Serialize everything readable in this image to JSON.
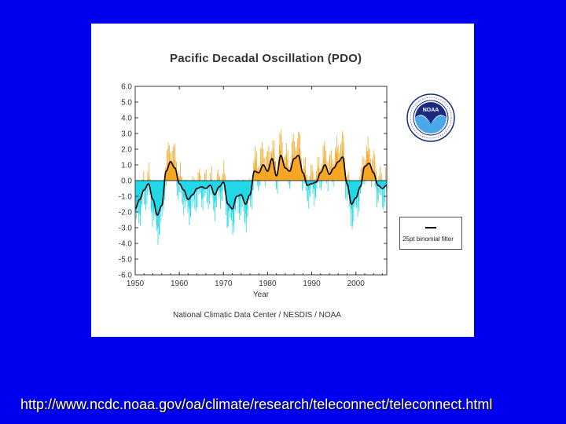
{
  "url": "http://www.ncdc.noaa.gov/oa/climate/research/teleconnect/teleconnect.html",
  "credit": "National Climatic Data Center / NESDIS / NOAA",
  "legend_label": "25pt binomial filter",
  "logo_text": "NOAA",
  "colors": {
    "background": "#0000f0",
    "positive": "#f5a623",
    "negative": "#22d8e8",
    "filter": "#000000"
  },
  "chart_data": {
    "type": "area",
    "title": "Pacific Decadal Oscillation (PDO)",
    "xlabel": "Year",
    "ylabel": "",
    "xlim": [
      1950,
      2007
    ],
    "ylim": [
      -6.0,
      6.0
    ],
    "xticks": [
      "1950",
      "1960",
      "1970",
      "1980",
      "1990",
      "2000"
    ],
    "yticks": [
      "6.0",
      "5.0",
      "4.0",
      "3.0",
      "2.0",
      "1.0",
      "0.0",
      "-1.0",
      "-2.0",
      "-3.0",
      "-4.0",
      "-5.0",
      "-6.0"
    ],
    "legend": [
      "25pt binomial filter"
    ],
    "grid": false,
    "series": [
      {
        "name": "25pt binomial filter",
        "x": [
          1950,
          1951,
          1952,
          1953,
          1954,
          1955,
          1956,
          1957,
          1958,
          1959,
          1960,
          1961,
          1962,
          1963,
          1964,
          1965,
          1966,
          1967,
          1968,
          1969,
          1970,
          1971,
          1972,
          1973,
          1974,
          1975,
          1976,
          1977,
          1978,
          1979,
          1980,
          1981,
          1982,
          1983,
          1984,
          1985,
          1986,
          1987,
          1988,
          1989,
          1990,
          1991,
          1992,
          1993,
          1994,
          1995,
          1996,
          1997,
          1998,
          1999,
          2000,
          2001,
          2002,
          2003,
          2004,
          2005,
          2006,
          2007
        ],
        "values": [
          -1.8,
          -1.2,
          -0.6,
          -0.2,
          -1.2,
          -2.2,
          -1.6,
          0.6,
          1.2,
          0.8,
          -0.2,
          -0.6,
          -1.2,
          -0.9,
          -0.5,
          -0.4,
          -0.5,
          -0.3,
          -0.9,
          -0.4,
          -0.1,
          -1.5,
          -1.8,
          -1.0,
          -0.9,
          -1.5,
          -0.9,
          0.6,
          0.5,
          1.0,
          0.6,
          1.4,
          0.3,
          1.6,
          0.8,
          0.6,
          1.4,
          1.6,
          0.5,
          -0.3,
          -0.2,
          -0.1,
          0.5,
          1.0,
          0.4,
          0.8,
          1.2,
          1.5,
          -0.2,
          -1.5,
          -1.1,
          -0.4,
          0.9,
          1.1,
          0.5,
          -0.3,
          -0.5,
          -0.3
        ]
      }
    ]
  }
}
